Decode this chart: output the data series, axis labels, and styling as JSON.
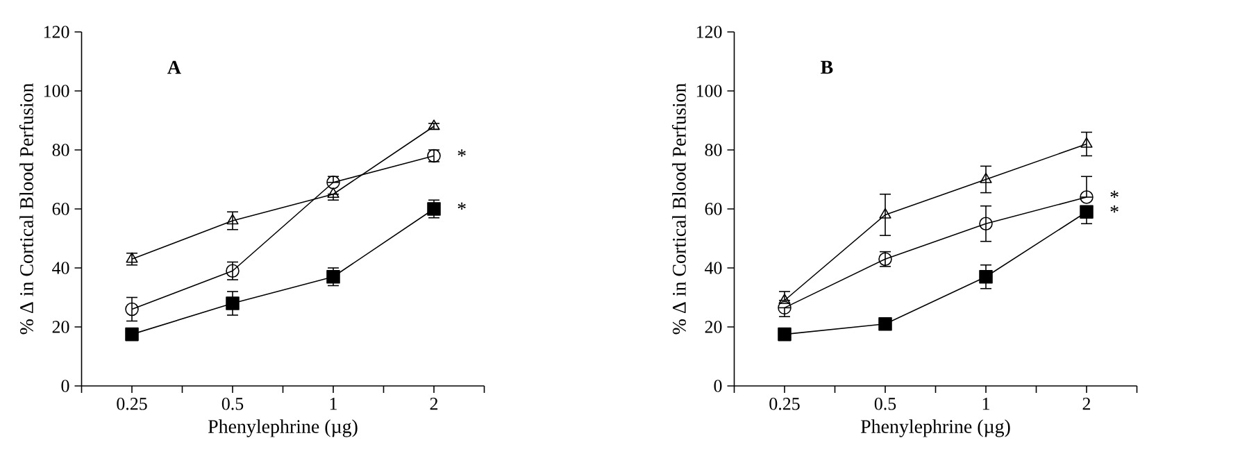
{
  "chart_data": [
    {
      "type": "line",
      "title": "A",
      "xlabel": "Phenylephrine (µg)",
      "ylabel": "% Δ in Cortical Blood Perfusion",
      "categories": [
        "0.25",
        "0.5",
        "1",
        "2"
      ],
      "ylim": [
        0,
        120
      ],
      "yticks": [
        0,
        20,
        40,
        60,
        80,
        100,
        120
      ],
      "series": [
        {
          "color": "#000000",
          "marker": "triangle",
          "values": [
            43,
            56,
            65,
            88
          ],
          "errors": [
            2,
            3,
            [
              63,
              65
            ],
            1
          ]
        },
        {
          "color": "#000000",
          "marker": "circle",
          "values": [
            26,
            39,
            69,
            78
          ],
          "errors": [
            4,
            3,
            [
              69,
              71
            ],
            2
          ]
        },
        {
          "color": "#000000",
          "marker": "square",
          "values": [
            17.5,
            28,
            37,
            60
          ],
          "errors": [
            1,
            4,
            3,
            3
          ]
        }
      ],
      "annotations": [
        {
          "text": "*",
          "x": "2",
          "y": 78
        },
        {
          "text": "*",
          "x": "2",
          "y": 60
        }
      ]
    },
    {
      "type": "line",
      "title": "B",
      "xlabel": "Phenylephrine (µg)",
      "ylabel": "% Δ in Cortical Blood Perfusion",
      "categories": [
        "0.25",
        "0.5",
        "1",
        "2"
      ],
      "ylim": [
        0,
        120
      ],
      "yticks": [
        0,
        20,
        40,
        60,
        80,
        100,
        120
      ],
      "series": [
        {
          "color": "#000000",
          "marker": "triangle",
          "values": [
            29,
            58,
            70,
            82
          ],
          "errors": [
            [
              29,
              32
            ],
            7,
            4.5,
            4
          ]
        },
        {
          "color": "#000000",
          "marker": "circle",
          "values": [
            26.5,
            43,
            55,
            64
          ],
          "errors": [
            [
              23.5,
              26.5
            ],
            2.5,
            6,
            [
              64,
              71
            ]
          ]
        },
        {
          "color": "#000000",
          "marker": "square",
          "values": [
            17.5,
            21,
            37,
            59
          ],
          "errors": [
            2,
            1.5,
            4,
            [
              55,
              59
            ]
          ]
        }
      ],
      "annotations": [
        {
          "text": "*",
          "x": "2",
          "y": 64
        },
        {
          "text": "*",
          "x": "2",
          "y": 59
        }
      ]
    }
  ]
}
